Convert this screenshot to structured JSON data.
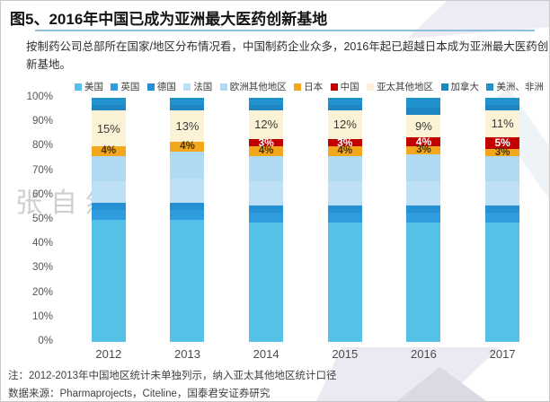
{
  "header": {
    "title": "图5、2016年中国已成为亚洲最大医药创新基地"
  },
  "description": {
    "lines": [
      "按制药公司总部所在国家/地区分布情况看，中国制药企业众多，2016年起已超越日本成为亚洲最大医药创",
      "新基地。"
    ]
  },
  "watermark": "张自然",
  "footnote": "注：2012-2013年中国地区统计未单独列示，纳入亚太其他地区统计口径",
  "source": "数据来源：Pharmaprojects，Citeline，国泰君安证券研究",
  "chart_data": {
    "type": "bar",
    "stacked": true,
    "title": "2016年中国已成为亚洲最大医药创新基地",
    "xlabel": "",
    "ylabel": "",
    "ylim": [
      0,
      100
    ],
    "grid": false,
    "legend_position": "top",
    "y_ticks": [
      "100%",
      "90%",
      "80%",
      "70%",
      "60%",
      "50%",
      "40%",
      "30%",
      "20%",
      "10%",
      "0%"
    ],
    "categories": [
      "2012",
      "2013",
      "2014",
      "2015",
      "2016",
      "2017"
    ],
    "series": [
      {
        "name": "美国",
        "color": "#55c0e8",
        "values": [
          50,
          50,
          49,
          49,
          49,
          49
        ]
      },
      {
        "name": "英国",
        "color": "#2f9cde",
        "values": [
          4,
          4,
          4,
          4,
          4,
          4
        ]
      },
      {
        "name": "德国",
        "color": "#2590d2",
        "values": [
          3,
          3,
          3,
          3,
          3,
          3
        ]
      },
      {
        "name": "法国",
        "color": "#bee0f6",
        "values": [
          9,
          10,
          10,
          10,
          10,
          10
        ]
      },
      {
        "name": "欧洲其他地区",
        "color": "#b0d9f2",
        "values": [
          10,
          11,
          10,
          10,
          11,
          10
        ]
      },
      {
        "name": "日本",
        "color": "#f3a71d",
        "values": [
          4,
          4,
          4,
          4,
          3,
          3
        ],
        "labels": [
          "4%",
          "4%",
          "4%",
          "4%",
          "3%",
          "3%"
        ],
        "label_color": "#4a3300",
        "label_bold": true,
        "label_size": "11.5px"
      },
      {
        "name": "中国",
        "color": "#c00000",
        "values": [
          0,
          0,
          3,
          3,
          4,
          5
        ],
        "labels": [
          null,
          null,
          "3%",
          "3%",
          "4%",
          "5%"
        ],
        "label_color": "#ffffff",
        "label_bold": true,
        "label_size": "12px"
      },
      {
        "name": "亚太其他地区",
        "color": "#fcf3d6",
        "values": [
          15,
          13,
          12,
          12,
          9,
          11
        ],
        "labels": [
          "15%",
          "13%",
          "12%",
          "12%",
          "9%",
          "11%"
        ],
        "label_color": "#3b3b3b",
        "label_bold": false,
        "label_size": "13px"
      },
      {
        "name": "加拿大",
        "color": "#1d86c3",
        "values": [
          2,
          2,
          2,
          2,
          3,
          2
        ]
      },
      {
        "name": "美洲、非洲",
        "color": "#2292cc",
        "values": [
          3,
          3,
          3,
          3,
          4,
          3
        ]
      }
    ]
  }
}
